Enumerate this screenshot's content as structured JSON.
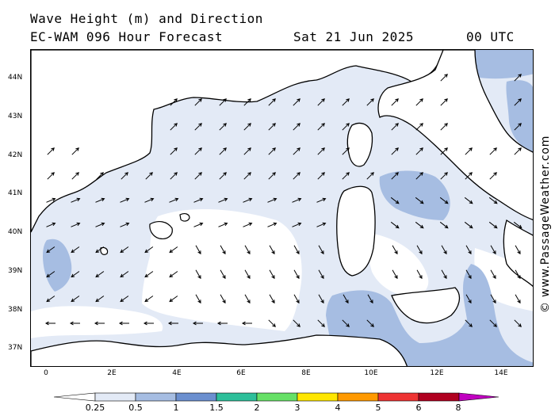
{
  "header": {
    "title": "Wave Height (m) and Direction",
    "subtitle": "EC-WAM 096 Hour Forecast",
    "date": "Sat 21 Jun 2025",
    "time": "00 UTC"
  },
  "map": {
    "lat_labels": [
      "44N",
      "43N",
      "42N",
      "41N",
      "40N",
      "39N",
      "38N",
      "37N"
    ],
    "lon_labels": [
      "0",
      "2E",
      "4E",
      "6E",
      "8E",
      "10E",
      "12E",
      "14E"
    ],
    "land_color": "#ffffff",
    "water_light_color": "#e3eaf6",
    "water_mid_color": "#a6bde2",
    "coastline_color": "#000000",
    "arrow_direction": "mostly north-east in the north, south-east in the south, westward along the African coast"
  },
  "colorbar": {
    "labels": [
      "0.25",
      "0.5",
      "1",
      "1.5",
      "2",
      "3",
      "4",
      "5",
      "6",
      "8"
    ],
    "colors": [
      "#e3eaf6",
      "#a6bde2",
      "#6b8fcf",
      "#2dbf9a",
      "#66e066",
      "#ffe600",
      "#ff9900",
      "#ee3333",
      "#b00020",
      "#c000c0"
    ]
  },
  "copyright": "© www.PassageWeather.com"
}
